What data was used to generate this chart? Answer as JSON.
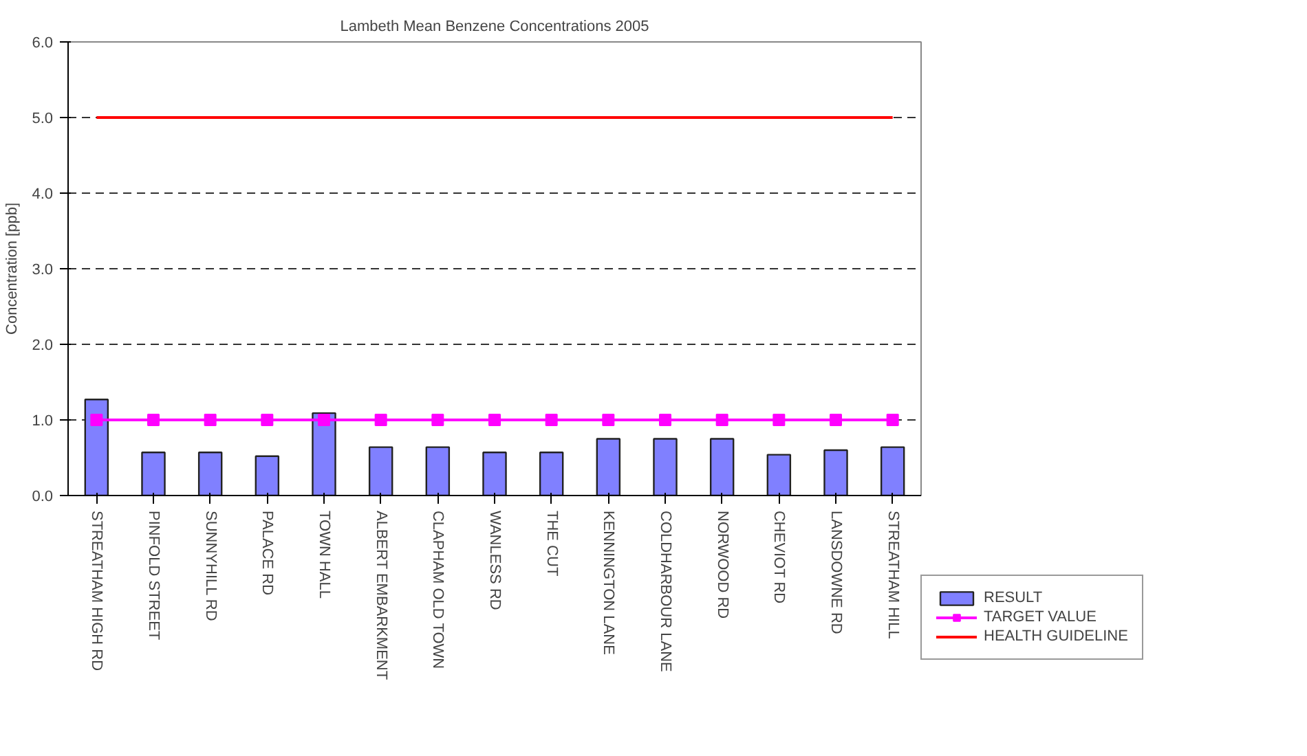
{
  "chart_data": {
    "type": "bar",
    "title": "Lambeth Mean Benzene Concentrations 2005",
    "ylabel": "Concentration [ppb]",
    "categories": [
      "STREATHAM HIGH RD",
      "PINFOLD STREET",
      "SUNNYHILL RD",
      "PALACE RD",
      "TOWN HALL",
      "ALBERT EMBARKMENT",
      "CLAPHAM OLD TOWN",
      "WANLESS RD",
      "THE CUT",
      "KENNINGTON LANE",
      "COLDHARBOUR LANE",
      "NORWOOD RD",
      "CHEVIOT RD",
      "LANSDOWNE RD",
      "STREATHAM HILL"
    ],
    "series": [
      {
        "name": "RESULT",
        "color": "#8080ff",
        "values": [
          1.27,
          0.57,
          0.57,
          0.52,
          1.09,
          0.64,
          0.64,
          0.57,
          0.57,
          0.75,
          0.75,
          0.75,
          0.54,
          0.6,
          0.64
        ]
      },
      {
        "name": "TARGET VALUE",
        "type": "line",
        "color": "#ff00ff",
        "marker": "square",
        "values": [
          1,
          1,
          1,
          1,
          1,
          1,
          1,
          1,
          1,
          1,
          1,
          1,
          1,
          1,
          1
        ]
      },
      {
        "name": "HEALTH GUIDELINE",
        "type": "line",
        "color": "#ff0000",
        "marker": "none",
        "values": [
          5,
          5,
          5,
          5,
          5,
          5,
          5,
          5,
          5,
          5,
          5,
          5,
          5,
          5,
          5
        ]
      }
    ],
    "ylim": [
      0,
      6
    ],
    "yticks": [
      {
        "value": 0,
        "label": "0.0"
      },
      {
        "value": 1,
        "label": "1.0"
      },
      {
        "value": 2,
        "label": "2.0"
      },
      {
        "value": 3,
        "label": "3.0"
      },
      {
        "value": 4,
        "label": "4.0"
      },
      {
        "value": 5,
        "label": "5.0"
      },
      {
        "value": 6,
        "label": "6.0"
      }
    ],
    "grid": "y",
    "legend": "right"
  }
}
